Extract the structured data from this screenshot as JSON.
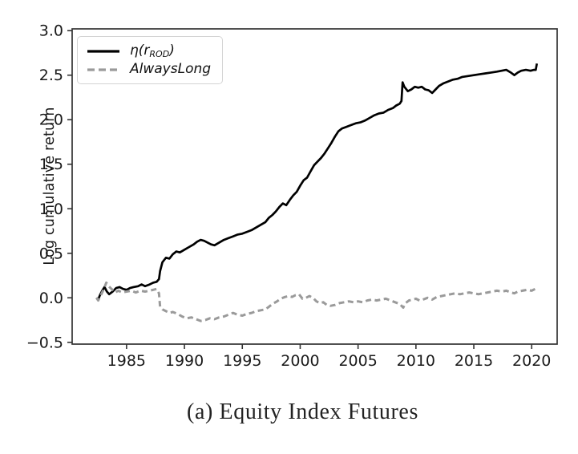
{
  "figure": {
    "caption": "(a) Equity Index Futures"
  },
  "legend": {
    "items": [
      {
        "label": "η(r_ROD)",
        "pre": "η(r",
        "sub": "ROD",
        "post": ")",
        "line_style": "solid",
        "color": "#000000"
      },
      {
        "label": "AlwaysLong",
        "pre": "AlwaysLong",
        "sub": "",
        "post": "",
        "line_style": "dashed",
        "color": "#9a9a9a"
      }
    ]
  },
  "chart_data": {
    "type": "line",
    "title": "",
    "xlabel": "",
    "ylabel": "Log cumulative return",
    "grid": false,
    "legend_position": "upper-left",
    "x_range": [
      1980.3,
      2022.2
    ],
    "y_range": [
      -0.52,
      3.02
    ],
    "x_ticks": [
      {
        "v": 1985,
        "label": "1985"
      },
      {
        "v": 1990,
        "label": "1990"
      },
      {
        "v": 1995,
        "label": "1995"
      },
      {
        "v": 2000,
        "label": "2000"
      },
      {
        "v": 2005,
        "label": "2005"
      },
      {
        "v": 2010,
        "label": "2010"
      },
      {
        "v": 2015,
        "label": "2015"
      },
      {
        "v": 2020,
        "label": "2020"
      }
    ],
    "y_ticks": [
      {
        "v": 3.0,
        "label": "3.0"
      },
      {
        "v": 2.5,
        "label": "2.5"
      },
      {
        "v": 2.0,
        "label": "2.0"
      },
      {
        "v": 1.5,
        "label": "1.5"
      },
      {
        "v": 1.0,
        "label": "1.0"
      },
      {
        "v": 0.5,
        "label": "0.5"
      },
      {
        "v": 0.0,
        "label": "0.0"
      },
      {
        "v": -0.5,
        "label": "−0.5"
      }
    ],
    "series": [
      {
        "name": "η(r_ROD)",
        "color": "#000000",
        "style": "solid",
        "points": [
          [
            1982.4,
            0.0
          ],
          [
            1982.55,
            -0.02
          ],
          [
            1982.7,
            0.03
          ],
          [
            1982.9,
            0.08
          ],
          [
            1983.1,
            0.12
          ],
          [
            1983.3,
            0.07
          ],
          [
            1983.5,
            0.04
          ],
          [
            1983.8,
            0.07
          ],
          [
            1984.1,
            0.11
          ],
          [
            1984.4,
            0.12
          ],
          [
            1984.7,
            0.1
          ],
          [
            1985.0,
            0.09
          ],
          [
            1985.3,
            0.11
          ],
          [
            1985.6,
            0.12
          ],
          [
            1986.0,
            0.13
          ],
          [
            1986.3,
            0.15
          ],
          [
            1986.6,
            0.13
          ],
          [
            1987.0,
            0.15
          ],
          [
            1987.3,
            0.17
          ],
          [
            1987.6,
            0.18
          ],
          [
            1987.8,
            0.21
          ],
          [
            1987.9,
            0.3
          ],
          [
            1988.1,
            0.4
          ],
          [
            1988.4,
            0.45
          ],
          [
            1988.7,
            0.44
          ],
          [
            1989.0,
            0.49
          ],
          [
            1989.3,
            0.52
          ],
          [
            1989.6,
            0.51
          ],
          [
            1990.0,
            0.54
          ],
          [
            1990.4,
            0.57
          ],
          [
            1990.8,
            0.6
          ],
          [
            1991.1,
            0.63
          ],
          [
            1991.4,
            0.65
          ],
          [
            1991.7,
            0.64
          ],
          [
            1992.0,
            0.62
          ],
          [
            1992.3,
            0.6
          ],
          [
            1992.6,
            0.59
          ],
          [
            1993.0,
            0.62
          ],
          [
            1993.4,
            0.65
          ],
          [
            1993.8,
            0.67
          ],
          [
            1994.2,
            0.69
          ],
          [
            1994.6,
            0.71
          ],
          [
            1995.0,
            0.72
          ],
          [
            1995.4,
            0.74
          ],
          [
            1995.8,
            0.76
          ],
          [
            1996.2,
            0.79
          ],
          [
            1996.6,
            0.82
          ],
          [
            1997.0,
            0.85
          ],
          [
            1997.3,
            0.9
          ],
          [
            1997.6,
            0.93
          ],
          [
            1997.9,
            0.97
          ],
          [
            1998.2,
            1.02
          ],
          [
            1998.5,
            1.06
          ],
          [
            1998.8,
            1.04
          ],
          [
            1999.1,
            1.1
          ],
          [
            1999.4,
            1.15
          ],
          [
            1999.7,
            1.19
          ],
          [
            2000.0,
            1.26
          ],
          [
            2000.3,
            1.32
          ],
          [
            2000.6,
            1.35
          ],
          [
            2000.9,
            1.42
          ],
          [
            2001.2,
            1.49
          ],
          [
            2001.5,
            1.53
          ],
          [
            2001.8,
            1.57
          ],
          [
            2002.1,
            1.62
          ],
          [
            2002.4,
            1.68
          ],
          [
            2002.7,
            1.74
          ],
          [
            2003.0,
            1.81
          ],
          [
            2003.3,
            1.87
          ],
          [
            2003.6,
            1.9
          ],
          [
            2004.0,
            1.92
          ],
          [
            2004.4,
            1.94
          ],
          [
            2004.8,
            1.96
          ],
          [
            2005.2,
            1.97
          ],
          [
            2005.6,
            1.99
          ],
          [
            2006.0,
            2.02
          ],
          [
            2006.4,
            2.05
          ],
          [
            2006.8,
            2.07
          ],
          [
            2007.2,
            2.08
          ],
          [
            2007.6,
            2.11
          ],
          [
            2008.0,
            2.13
          ],
          [
            2008.3,
            2.16
          ],
          [
            2008.6,
            2.18
          ],
          [
            2008.75,
            2.21
          ],
          [
            2008.85,
            2.42
          ],
          [
            2009.0,
            2.37
          ],
          [
            2009.3,
            2.32
          ],
          [
            2009.6,
            2.34
          ],
          [
            2009.9,
            2.37
          ],
          [
            2010.2,
            2.36
          ],
          [
            2010.5,
            2.37
          ],
          [
            2010.8,
            2.34
          ],
          [
            2011.1,
            2.33
          ],
          [
            2011.4,
            2.3
          ],
          [
            2011.7,
            2.34
          ],
          [
            2012.0,
            2.38
          ],
          [
            2012.4,
            2.41
          ],
          [
            2012.8,
            2.43
          ],
          [
            2013.2,
            2.45
          ],
          [
            2013.6,
            2.46
          ],
          [
            2014.0,
            2.48
          ],
          [
            2014.5,
            2.49
          ],
          [
            2015.0,
            2.5
          ],
          [
            2015.5,
            2.51
          ],
          [
            2016.0,
            2.52
          ],
          [
            2016.5,
            2.53
          ],
          [
            2017.0,
            2.54
          ],
          [
            2017.4,
            2.55
          ],
          [
            2017.8,
            2.56
          ],
          [
            2018.2,
            2.53
          ],
          [
            2018.5,
            2.5
          ],
          [
            2018.8,
            2.53
          ],
          [
            2019.1,
            2.55
          ],
          [
            2019.5,
            2.56
          ],
          [
            2019.9,
            2.55
          ],
          [
            2020.2,
            2.56
          ],
          [
            2020.35,
            2.56
          ],
          [
            2020.45,
            2.63
          ]
        ]
      },
      {
        "name": "AlwaysLong",
        "color": "#9a9a9a",
        "style": "dashed",
        "points": [
          [
            1982.4,
            0.0
          ],
          [
            1982.55,
            -0.03
          ],
          [
            1982.7,
            0.01
          ],
          [
            1982.9,
            0.06
          ],
          [
            1983.1,
            0.12
          ],
          [
            1983.25,
            0.17
          ],
          [
            1983.45,
            0.13
          ],
          [
            1983.7,
            0.1
          ],
          [
            1984.0,
            0.06
          ],
          [
            1984.3,
            0.08
          ],
          [
            1984.6,
            0.06
          ],
          [
            1985.0,
            0.07
          ],
          [
            1985.4,
            0.08
          ],
          [
            1985.8,
            0.06
          ],
          [
            1986.2,
            0.08
          ],
          [
            1986.6,
            0.07
          ],
          [
            1987.0,
            0.08
          ],
          [
            1987.3,
            0.09
          ],
          [
            1987.6,
            0.1
          ],
          [
            1987.8,
            0.05
          ],
          [
            1987.9,
            -0.1
          ],
          [
            1988.1,
            -0.13
          ],
          [
            1988.4,
            -0.15
          ],
          [
            1988.7,
            -0.17
          ],
          [
            1989.0,
            -0.16
          ],
          [
            1989.4,
            -0.18
          ],
          [
            1989.8,
            -0.21
          ],
          [
            1990.2,
            -0.23
          ],
          [
            1990.6,
            -0.22
          ],
          [
            1991.0,
            -0.24
          ],
          [
            1991.4,
            -0.26
          ],
          [
            1991.8,
            -0.25
          ],
          [
            1992.2,
            -0.23
          ],
          [
            1992.6,
            -0.24
          ],
          [
            1993.0,
            -0.22
          ],
          [
            1993.4,
            -0.21
          ],
          [
            1993.8,
            -0.19
          ],
          [
            1994.2,
            -0.17
          ],
          [
            1994.6,
            -0.19
          ],
          [
            1995.0,
            -0.2
          ],
          [
            1995.4,
            -0.18
          ],
          [
            1995.8,
            -0.17
          ],
          [
            1996.2,
            -0.15
          ],
          [
            1996.6,
            -0.14
          ],
          [
            1997.0,
            -0.13
          ],
          [
            1997.3,
            -0.1
          ],
          [
            1997.6,
            -0.07
          ],
          [
            1998.0,
            -0.04
          ],
          [
            1998.3,
            -0.01
          ],
          [
            1998.7,
            0.01
          ],
          [
            1999.0,
            0.02
          ],
          [
            1999.3,
            0.01
          ],
          [
            1999.6,
            0.03
          ],
          [
            1999.9,
            0.04
          ],
          [
            2000.2,
            -0.01
          ],
          [
            2000.5,
            0.0
          ],
          [
            2000.8,
            0.02
          ],
          [
            2001.1,
            0.0
          ],
          [
            2001.4,
            -0.04
          ],
          [
            2001.7,
            -0.06
          ],
          [
            2002.0,
            -0.05
          ],
          [
            2002.3,
            -0.08
          ],
          [
            2002.6,
            -0.09
          ],
          [
            2003.0,
            -0.08
          ],
          [
            2003.4,
            -0.06
          ],
          [
            2003.8,
            -0.05
          ],
          [
            2004.2,
            -0.04
          ],
          [
            2004.6,
            -0.05
          ],
          [
            2005.0,
            -0.04
          ],
          [
            2005.4,
            -0.05
          ],
          [
            2005.8,
            -0.03
          ],
          [
            2006.2,
            -0.02
          ],
          [
            2006.6,
            -0.03
          ],
          [
            2007.0,
            -0.02
          ],
          [
            2007.4,
            -0.01
          ],
          [
            2007.8,
            -0.03
          ],
          [
            2008.2,
            -0.05
          ],
          [
            2008.6,
            -0.07
          ],
          [
            2008.9,
            -0.11
          ],
          [
            2009.1,
            -0.06
          ],
          [
            2009.4,
            -0.03
          ],
          [
            2009.7,
            -0.02
          ],
          [
            2010.0,
            -0.01
          ],
          [
            2010.3,
            -0.03
          ],
          [
            2010.6,
            -0.02
          ],
          [
            2011.0,
            0.0
          ],
          [
            2011.4,
            -0.02
          ],
          [
            2011.8,
            0.01
          ],
          [
            2012.2,
            0.02
          ],
          [
            2012.6,
            0.03
          ],
          [
            2013.0,
            0.04
          ],
          [
            2013.4,
            0.05
          ],
          [
            2013.8,
            0.04
          ],
          [
            2014.2,
            0.05
          ],
          [
            2014.6,
            0.06
          ],
          [
            2015.0,
            0.05
          ],
          [
            2015.4,
            0.04
          ],
          [
            2015.8,
            0.05
          ],
          [
            2016.2,
            0.06
          ],
          [
            2016.6,
            0.07
          ],
          [
            2017.0,
            0.08
          ],
          [
            2017.4,
            0.07
          ],
          [
            2017.8,
            0.08
          ],
          [
            2018.2,
            0.06
          ],
          [
            2018.5,
            0.05
          ],
          [
            2018.8,
            0.07
          ],
          [
            2019.2,
            0.08
          ],
          [
            2019.6,
            0.09
          ],
          [
            2020.0,
            0.08
          ],
          [
            2020.3,
            0.1
          ],
          [
            2020.45,
            0.13
          ]
        ]
      }
    ]
  }
}
